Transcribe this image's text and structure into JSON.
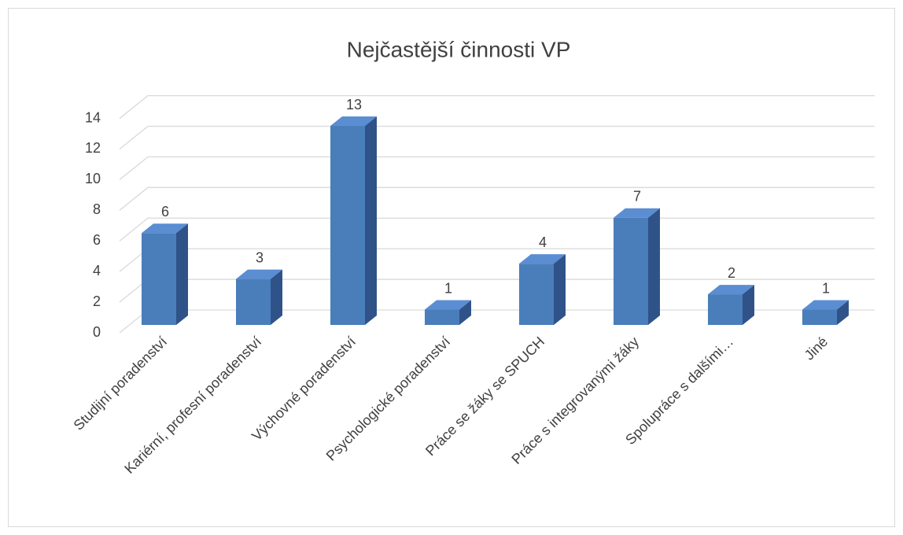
{
  "chart_data": {
    "type": "bar3d",
    "title": "Nejčastější činnosti VP",
    "categories": [
      "Studijní poradenství",
      "Kariérní, profesní poradenství",
      "Výchovné poradenství",
      "Psychologické poradenství",
      "Práce se žáky se SPUCH",
      "Práce s integrovanými žáky",
      "Spolupráce s dalšími…",
      "Jiné"
    ],
    "values": [
      6,
      3,
      13,
      1,
      4,
      7,
      2,
      1
    ],
    "color": "#4a7ebb",
    "ylim": [
      0,
      14
    ],
    "yticks": [
      0,
      2,
      4,
      6,
      8,
      10,
      12,
      14
    ],
    "grid": true
  }
}
